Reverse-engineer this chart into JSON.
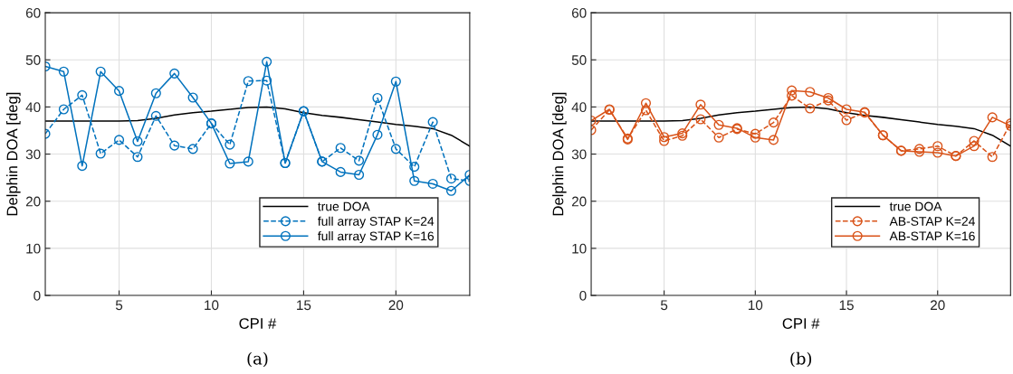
{
  "chart_data": [
    {
      "type": "line",
      "xlabel": "CPI #",
      "ylabel": "Delphin DOA [deg]",
      "annotations": [
        "(a)"
      ],
      "x": [
        1,
        2,
        3,
        4,
        5,
        6,
        7,
        8,
        9,
        10,
        11,
        12,
        13,
        14,
        15,
        16,
        17,
        18,
        19,
        20,
        21,
        22,
        23,
        24
      ],
      "xlim": [
        1,
        24
      ],
      "xticks": [
        5,
        10,
        15,
        20
      ],
      "ylim": [
        0,
        60
      ],
      "yticks": [
        0,
        10,
        20,
        30,
        40,
        50,
        60
      ],
      "grid": true,
      "legend": "bottom right",
      "series": [
        {
          "name": "true DOA",
          "color": "#000000",
          "marker": "none",
          "line_style": "solid",
          "values": [
            37.0,
            37.0,
            37.0,
            37.0,
            37.0,
            37.1,
            37.6,
            38.3,
            38.8,
            39.1,
            39.5,
            39.9,
            40.0,
            39.6,
            38.8,
            38.2,
            37.8,
            37.3,
            36.8,
            36.3,
            35.9,
            35.4,
            34.0,
            31.7
          ]
        },
        {
          "name": "full array STAP K=24",
          "color": "#0072bd",
          "marker": "circle",
          "line_style": "dashed",
          "values": [
            34.3,
            39.5,
            42.5,
            30.1,
            33.0,
            29.4,
            38.1,
            31.8,
            31.1,
            36.5,
            32.0,
            45.5,
            45.6,
            28.1,
            39.1,
            28.4,
            31.3,
            28.6,
            41.9,
            31.1,
            27.3,
            36.8,
            24.8,
            24.3
          ]
        },
        {
          "name": "full array STAP K=16",
          "color": "#0072bd",
          "marker": "circle",
          "line_style": "solid",
          "values": [
            48.6,
            47.5,
            27.5,
            47.5,
            43.4,
            32.7,
            42.9,
            47.1,
            42.0,
            36.5,
            28.0,
            28.4,
            49.6,
            28.1,
            39.1,
            28.4,
            26.2,
            25.6,
            34.1,
            45.4,
            24.3,
            23.7,
            22.2,
            25.6
          ]
        }
      ]
    },
    {
      "type": "line",
      "xlabel": "CPI #",
      "ylabel": "Delphin DOA [deg]",
      "annotations": [
        "(b)"
      ],
      "x": [
        1,
        2,
        3,
        4,
        5,
        6,
        7,
        8,
        9,
        10,
        11,
        12,
        13,
        14,
        15,
        16,
        17,
        18,
        19,
        20,
        21,
        22,
        23,
        24
      ],
      "xlim": [
        1,
        24
      ],
      "xticks": [
        5,
        10,
        15,
        20
      ],
      "ylim": [
        0,
        60
      ],
      "yticks": [
        0,
        10,
        20,
        30,
        40,
        50,
        60
      ],
      "grid": true,
      "legend": "bottom right",
      "series": [
        {
          "name": "true DOA",
          "color": "#000000",
          "marker": "none",
          "line_style": "solid",
          "values": [
            37.0,
            37.0,
            37.0,
            37.0,
            37.0,
            37.1,
            37.6,
            38.3,
            38.8,
            39.1,
            39.5,
            39.9,
            40.0,
            39.6,
            38.8,
            38.2,
            37.8,
            37.3,
            36.8,
            36.3,
            35.9,
            35.4,
            34.0,
            31.7
          ]
        },
        {
          "name": "AB-STAP K=24",
          "color": "#d95319",
          "marker": "circle",
          "line_style": "dashed",
          "values": [
            35.1,
            39.4,
            33.3,
            39.3,
            32.8,
            33.9,
            37.4,
            33.5,
            35.3,
            34.3,
            36.7,
            42.4,
            39.7,
            41.4,
            37.2,
            38.8,
            34.0,
            30.7,
            31.1,
            31.7,
            29.6,
            32.8,
            29.4,
            36.5
          ]
        },
        {
          "name": "AB-STAP K=16",
          "color": "#d95319",
          "marker": "circle",
          "line_style": "solid",
          "values": [
            37.1,
            39.5,
            33.1,
            40.8,
            33.6,
            34.4,
            40.5,
            36.2,
            35.5,
            33.5,
            33.0,
            43.5,
            43.2,
            41.9,
            39.5,
            38.9,
            34.0,
            30.7,
            30.5,
            30.3,
            29.6,
            31.7,
            37.8,
            36.0
          ]
        }
      ]
    }
  ]
}
